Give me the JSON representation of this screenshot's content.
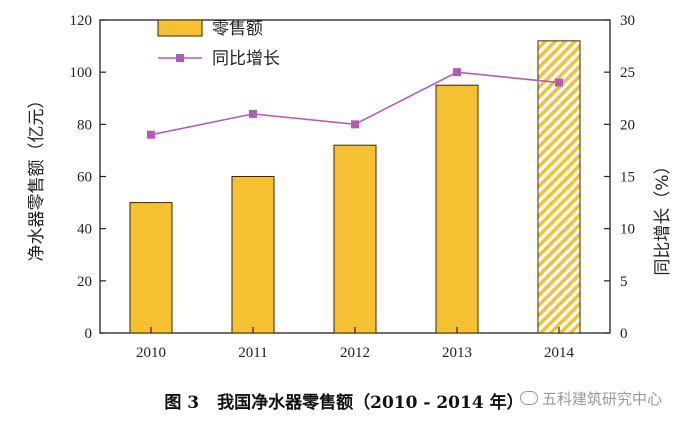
{
  "chart_data": {
    "type": "bar",
    "categories": [
      "2010",
      "2011",
      "2012",
      "2013",
      "2014"
    ],
    "series": [
      {
        "name": "零售额",
        "type": "bar",
        "axis": "left",
        "values": [
          50,
          60,
          72,
          95,
          112
        ],
        "color": "#f5c132",
        "highlight_last_hatched": true
      },
      {
        "name": "同比增长",
        "type": "line",
        "axis": "right",
        "values": [
          19,
          21,
          20,
          25,
          24
        ],
        "color": "#b25cb8"
      }
    ],
    "ylabel_left": "净水器零售额（亿元）",
    "ylabel_right": "同比增长（%）",
    "ylim_left": [
      0,
      120
    ],
    "ylim_right": [
      0,
      30
    ],
    "yticks_left": [
      "0",
      "20",
      "40",
      "60",
      "80",
      "100",
      "120"
    ],
    "yticks_right": [
      "0",
      "5",
      "10",
      "15",
      "20",
      "25",
      "30"
    ],
    "legend": "top-left",
    "grid": false
  },
  "caption": {
    "number": "图 3",
    "text": "我国净水器零售额（2010 - 2014 年）"
  },
  "watermark": "五科建筑研究中心",
  "colors": {
    "bar_fill": "#f5c132",
    "bar_stroke": "#3a2a00",
    "line": "#b25cb8",
    "marker": "#b25cb8"
  },
  "icons": {
    "watermark": "wechat-icon"
  }
}
